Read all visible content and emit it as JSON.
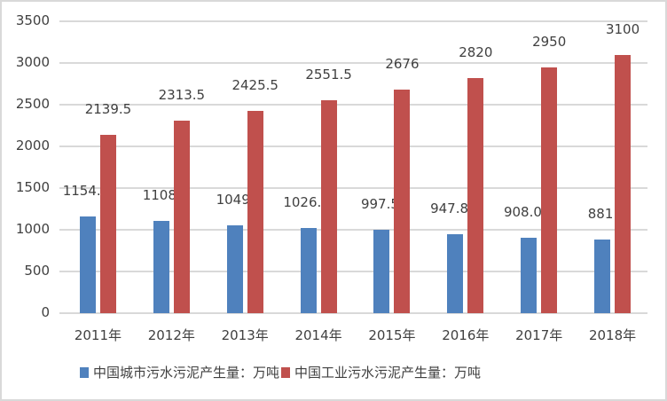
{
  "chart_data": {
    "type": "bar",
    "title": "",
    "xlabel": "",
    "ylabel": "",
    "categories": [
      "2011年",
      "2012年",
      "2013年",
      "2014年",
      "2015年",
      "2016年",
      "2017年",
      "2018年"
    ],
    "series": [
      {
        "name": "中国城市污水污泥产生量：万吨",
        "color": "#4f81bd",
        "values": [
          1154.5,
          1108,
          1049,
          1026.5,
          997.5,
          947.87,
          908.07,
          881
        ],
        "labels": [
          "1154.5",
          "1108",
          "1049",
          "1026.5",
          "997.5",
          "947.87",
          "908.07",
          "881"
        ]
      },
      {
        "name": "中国工业污水污泥产生量：万吨",
        "color": "#c0504d",
        "values": [
          2139.5,
          2313.5,
          2425.5,
          2551.5,
          2676,
          2820,
          2950,
          3100
        ],
        "labels": [
          "2139.5",
          "2313.5",
          "2425.5",
          "2551.5",
          "2676",
          "2820",
          "2950",
          "3100"
        ]
      }
    ],
    "ylim": [
      0,
      3500
    ],
    "yticks": [
      "0",
      "500",
      "1000",
      "1500",
      "2000",
      "2500",
      "3000",
      "3500"
    ],
    "grid": true,
    "legend_position": "bottom"
  }
}
